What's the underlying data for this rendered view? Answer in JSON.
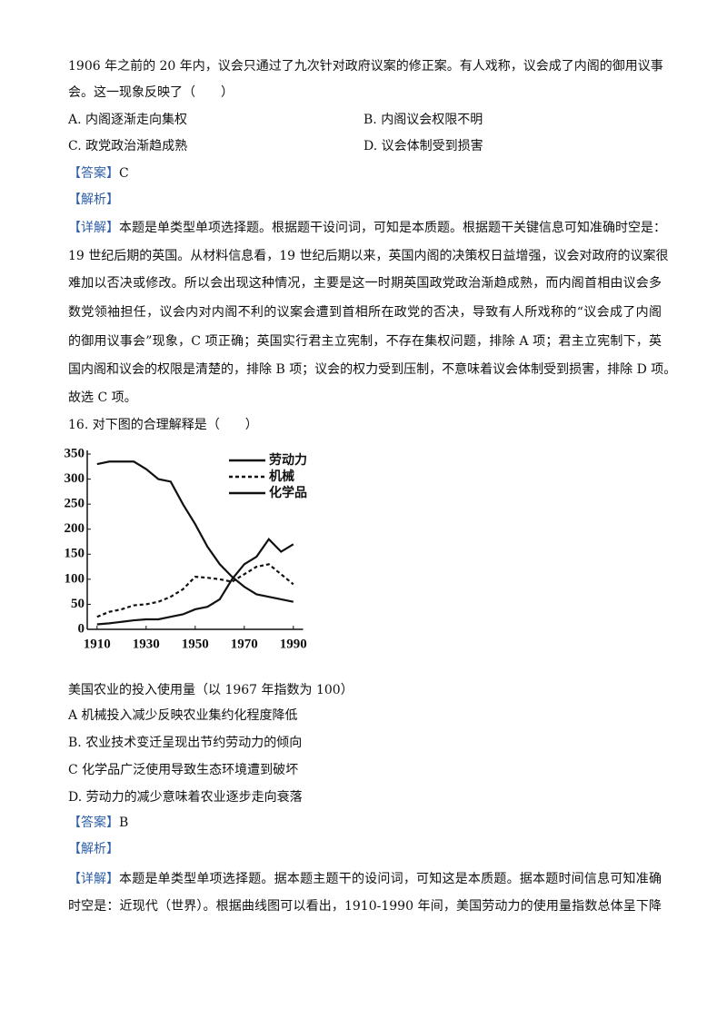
{
  "q15": {
    "stem": [
      "1906 年之前的 20 年内，议会只通过了九次针对政府议案的修正案。有人戏称，议会成了内阁的御用议事",
      "会。这一现象反映了（　　）"
    ],
    "options": [
      "A. 内阁逐渐走向集权",
      "B. 内阁议会权限不明",
      "C. 政党政治渐趋成熟",
      "D. 议会体制受到损害"
    ],
    "answer_label": "【答案】",
    "answer": "C",
    "analysis_label": "【解析】",
    "detail_label": "【详解】",
    "detail": [
      "本题是单类型单项选择题。根据题干设问词，可知是本质题。根据题干关键信息可知准确时空是：",
      "19 世纪后期的英国。从材料信息看，19 世纪后期以来，英国内阁的决策权日益增强，议会对政府的议案很",
      "难加以否决或修改。所以会出现这种情况，主要是这一时期英国政党政治渐趋成熟，而内阁首相由议会多",
      "数党领袖担任，议会内对内阁不利的议案会遭到首相所在政党的否决，导致有人所戏称的“议会成了内阁",
      "的御用议事会”现象，C 项正确；英国实行君主立宪制，不存在集权问题，排除 A 项；君主立宪制下，英",
      "国内阁和议会的权限是清楚的，排除 B 项；议会的权力受到压制，不意味着议会体制受到损害，排除 D 项。",
      "故选 C 项。"
    ]
  },
  "q16": {
    "stem": "16. 对下图的合理解释是（　　）",
    "caption": "美国农业的投入使用量（以 1967 年指数为 100）",
    "options": [
      "A  机械投入减少反映农业集约化程度降低",
      "B. 农业技术变迁呈现出节约劳动力的倾向",
      "C  化学品广泛使用导致生态环境遭到破坏",
      "D. 劳动力的减少意味着农业逐步走向衰落"
    ],
    "answer_label": "【答案】",
    "answer": "B",
    "analysis_label": "【解析】",
    "detail_label": "【详解】",
    "detail": [
      "本题是单类型单项选择题。据本题主题干的设问词，可知这是本质题。据本题时间信息可知准确",
      "时空是：近现代（世界）。根据曲线图可以看出，1910-1990 年间，美国劳动力的使用量指数总体呈下降"
    ]
  },
  "chart_data": {
    "type": "line",
    "x": [
      1910,
      1915,
      1920,
      1925,
      1930,
      1935,
      1940,
      1945,
      1950,
      1955,
      1960,
      1965,
      1970,
      1975,
      1980,
      1985,
      1990
    ],
    "series": [
      {
        "name": "劳动力",
        "color": "#111111",
        "dashed": false,
        "values": [
          330,
          335,
          335,
          335,
          320,
          300,
          295,
          250,
          210,
          165,
          130,
          105,
          85,
          70,
          65,
          60,
          55
        ]
      },
      {
        "name": "机械",
        "color": "#111111",
        "dashed": true,
        "values": [
          25,
          35,
          40,
          48,
          50,
          55,
          65,
          80,
          105,
          103,
          100,
          95,
          110,
          125,
          130,
          110,
          90
        ]
      },
      {
        "name": "化学品",
        "color": "#111111",
        "dashed": false,
        "values": [
          10,
          12,
          15,
          18,
          20,
          20,
          25,
          30,
          40,
          45,
          60,
          100,
          130,
          145,
          180,
          155,
          170
        ]
      }
    ],
    "xlim": [
      1906,
      1994
    ],
    "xticks": [
      1910,
      1930,
      1950,
      1970,
      1990
    ],
    "ylim": [
      0,
      350
    ],
    "yticks": [
      0,
      50,
      100,
      150,
      200,
      250,
      300,
      350
    ]
  }
}
